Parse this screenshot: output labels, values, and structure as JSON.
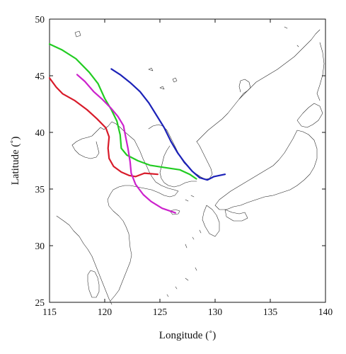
{
  "map": {
    "xlabel": "Longitude (˚)",
    "ylabel": "Latitude (˚)",
    "xlim": [
      115,
      140
    ],
    "ylim": [
      25,
      50
    ],
    "xticks": [
      115,
      120,
      125,
      130,
      135,
      140
    ],
    "yticks": [
      25,
      30,
      35,
      40,
      45,
      50
    ]
  },
  "chart_data": {
    "type": "line",
    "xlabel": "Longitude (˚)",
    "ylabel": "Latitude (˚)",
    "xlim": [
      115,
      140
    ],
    "ylim": [
      25,
      50
    ],
    "grid": false,
    "series": [
      {
        "color": "#d81b2a",
        "points": [
          [
            115.0,
            44.8
          ],
          [
            115.6,
            44.0
          ],
          [
            116.2,
            43.4
          ],
          [
            117.3,
            42.8
          ],
          [
            118.4,
            42.0
          ],
          [
            119.3,
            41.2
          ],
          [
            120.1,
            40.4
          ],
          [
            120.4,
            39.6
          ],
          [
            120.3,
            38.6
          ],
          [
            120.4,
            37.7
          ],
          [
            120.8,
            37.0
          ],
          [
            121.5,
            36.5
          ],
          [
            122.2,
            36.2
          ],
          [
            122.8,
            36.1
          ],
          [
            123.6,
            36.4
          ],
          [
            124.8,
            36.3
          ]
        ]
      },
      {
        "color": "#22cc22",
        "points": [
          [
            115.0,
            47.8
          ],
          [
            116.1,
            47.3
          ],
          [
            117.4,
            46.5
          ],
          [
            118.6,
            45.3
          ],
          [
            119.4,
            44.3
          ],
          [
            120.0,
            43.0
          ],
          [
            120.6,
            42.0
          ],
          [
            121.1,
            41.0
          ],
          [
            121.4,
            39.8
          ],
          [
            121.5,
            38.6
          ],
          [
            122.0,
            38.0
          ],
          [
            123.0,
            37.5
          ],
          [
            124.1,
            37.1
          ],
          [
            125.4,
            36.9
          ],
          [
            126.8,
            36.7
          ],
          [
            127.7,
            36.3
          ],
          [
            128.3,
            35.9
          ]
        ]
      },
      {
        "color": "#cc22cc",
        "points": [
          [
            117.5,
            45.1
          ],
          [
            118.2,
            44.5
          ],
          [
            119.0,
            43.6
          ],
          [
            119.8,
            42.9
          ],
          [
            120.6,
            42.1
          ],
          [
            121.2,
            41.4
          ],
          [
            121.7,
            40.6
          ],
          [
            121.9,
            39.6
          ],
          [
            122.1,
            38.6
          ],
          [
            122.3,
            37.4
          ],
          [
            122.4,
            36.4
          ],
          [
            122.8,
            35.4
          ],
          [
            123.5,
            34.5
          ],
          [
            124.2,
            33.9
          ],
          [
            125.2,
            33.3
          ],
          [
            126.4,
            32.9
          ]
        ]
      },
      {
        "color": "#1c22b8",
        "points": [
          [
            120.6,
            45.6
          ],
          [
            121.4,
            45.1
          ],
          [
            122.3,
            44.4
          ],
          [
            123.2,
            43.6
          ],
          [
            124.0,
            42.6
          ],
          [
            124.7,
            41.5
          ],
          [
            125.4,
            40.4
          ],
          [
            126.0,
            39.2
          ],
          [
            126.6,
            38.2
          ],
          [
            127.2,
            37.4
          ],
          [
            127.9,
            36.6
          ],
          [
            128.6,
            36.0
          ],
          [
            129.3,
            35.8
          ],
          [
            129.9,
            36.1
          ],
          [
            130.9,
            36.3
          ]
        ]
      }
    ]
  }
}
